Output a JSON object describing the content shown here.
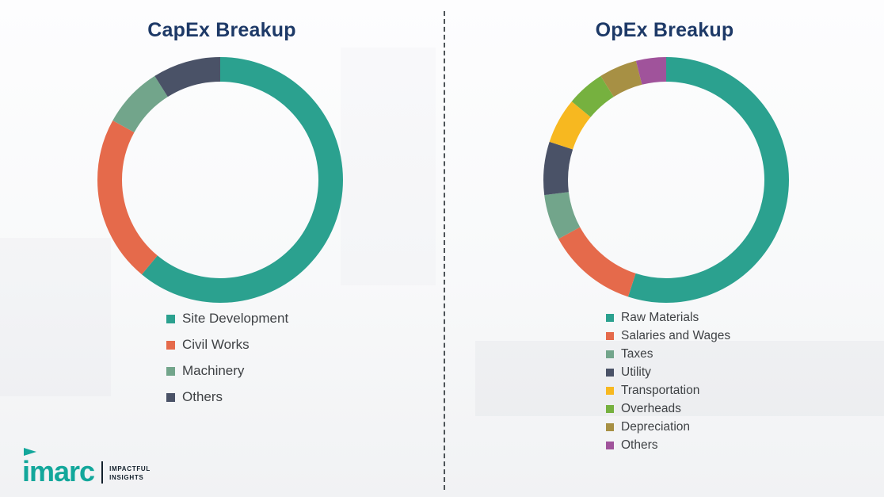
{
  "charts_section": {
    "left_title": "CapEx Breakup",
    "right_title": "OpEx Breakup"
  },
  "chart_data": [
    {
      "type": "pie",
      "subtype": "donut",
      "title": "CapEx Breakup",
      "categories": [
        "Site Development",
        "Civil Works",
        "Machinery",
        "Others"
      ],
      "values": [
        61,
        22,
        8,
        9
      ],
      "colors": [
        "#2ba18f",
        "#e56a4b",
        "#72a58b",
        "#4a5267"
      ],
      "legend_position": "bottom-left",
      "value_note": "percent share estimated from arc angles; no numeric labels shown"
    },
    {
      "type": "pie",
      "subtype": "donut",
      "title": "OpEx Breakup",
      "categories": [
        "Raw Materials",
        "Salaries and Wages",
        "Taxes",
        "Utility",
        "Transportation",
        "Overheads",
        "Depreciation",
        "Others"
      ],
      "values": [
        55,
        12,
        6,
        7,
        6,
        5,
        5,
        4
      ],
      "colors": [
        "#2ba18f",
        "#e56a4b",
        "#72a58b",
        "#4a5267",
        "#f7b820",
        "#76b13f",
        "#a79044",
        "#a0539b"
      ],
      "legend_position": "bottom-left",
      "value_note": "percent share estimated from arc angles; no numeric labels shown"
    }
  ],
  "logo": {
    "wordmark": "imarc",
    "tagline_line1": "IMPACTFUL",
    "tagline_line2": "INSIGHTS",
    "brand_color": "#13a79b"
  },
  "style": {
    "title_color": "#1d3967",
    "legend_text_color": "#3f4245",
    "divider_color": "#4d5357"
  }
}
